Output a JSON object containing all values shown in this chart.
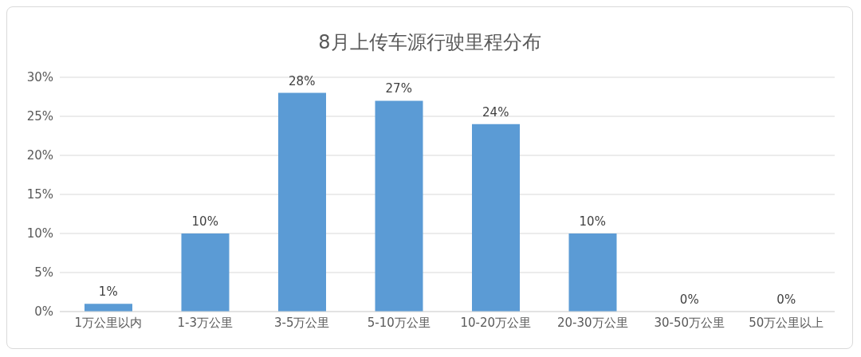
{
  "chart_data": {
    "type": "bar",
    "title": "8月上传车源行驶里程分布",
    "categories": [
      "1万公里以内",
      "1-3万公里",
      "3-5万公里",
      "5-10万公里",
      "10-20万公里",
      "20-30万公里",
      "30-50万公里",
      "50万公里以上"
    ],
    "values": [
      1,
      10,
      28,
      27,
      24,
      10,
      0,
      0
    ],
    "value_labels": [
      "1%",
      "10%",
      "28%",
      "27%",
      "24%",
      "10%",
      "0%",
      "0%"
    ],
    "color": "#5b9bd5",
    "ylim": [
      0,
      30
    ],
    "yticks": [
      {
        "value": 0,
        "label": "0%"
      },
      {
        "value": 5,
        "label": "5%"
      },
      {
        "value": 10,
        "label": "10%"
      },
      {
        "value": 15,
        "label": "15%"
      },
      {
        "value": 20,
        "label": "20%"
      },
      {
        "value": 25,
        "label": "25%"
      },
      {
        "value": 30,
        "label": "30%"
      }
    ],
    "grid": "y",
    "legend": false
  }
}
